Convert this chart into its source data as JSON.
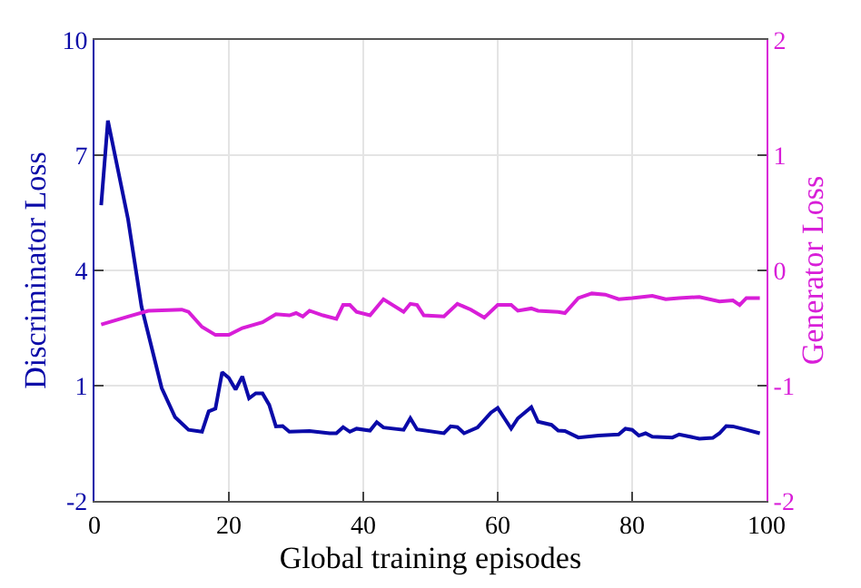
{
  "chart_data": {
    "type": "line",
    "xlabel": "Global training episodes",
    "ylabel": "Discriminator Loss",
    "y2label": "Generator Loss",
    "xlim": [
      0,
      100
    ],
    "xticks": [
      0,
      20,
      40,
      60,
      80,
      100
    ],
    "ylim": [
      -2,
      10
    ],
    "yticks": [
      -2,
      1,
      4,
      7,
      10
    ],
    "y2lim": [
      -2,
      2
    ],
    "y2ticks": [
      -2,
      -1,
      0,
      1,
      2
    ],
    "grid": true,
    "marker": "none",
    "line_style": "solid",
    "series": [
      {
        "color": "#0a0aa8",
        "x": [
          1,
          2,
          5,
          7,
          10,
          12,
          14,
          16,
          17,
          18,
          19,
          20,
          21,
          22,
          23,
          24,
          25,
          26,
          27,
          28,
          29,
          32,
          35,
          36,
          37,
          38,
          39,
          41,
          42,
          43,
          46,
          47,
          48,
          52,
          53,
          54,
          55,
          57,
          59,
          60,
          61,
          62,
          63,
          65,
          66,
          68,
          69,
          70,
          72,
          75,
          78,
          79,
          80,
          81,
          82,
          83,
          86,
          87,
          90,
          92,
          93,
          94,
          95,
          97,
          99
        ],
        "values": [
          5.7,
          7.9,
          5.33,
          3.06,
          0.94,
          0.18,
          -0.15,
          -0.2,
          0.33,
          0.4,
          1.35,
          1.2,
          0.9,
          1.24,
          0.67,
          0.8,
          0.8,
          0.5,
          -0.06,
          -0.05,
          -0.2,
          -0.18,
          -0.24,
          -0.24,
          -0.08,
          -0.2,
          -0.12,
          -0.17,
          0.05,
          -0.09,
          -0.15,
          0.15,
          -0.14,
          -0.24,
          -0.06,
          -0.08,
          -0.24,
          -0.09,
          0.3,
          0.42,
          0.15,
          -0.12,
          0.15,
          0.44,
          0.06,
          -0.02,
          -0.17,
          -0.18,
          -0.35,
          -0.3,
          -0.27,
          -0.12,
          -0.15,
          -0.3,
          -0.24,
          -0.33,
          -0.35,
          -0.27,
          -0.38,
          -0.36,
          -0.24,
          -0.05,
          -0.06,
          -0.15,
          -0.24
        ]
      },
      {
        "color": "#d81ed8",
        "axis": "y2",
        "x": [
          1,
          5,
          8,
          13,
          14,
          16,
          18,
          20,
          22,
          25,
          27,
          29,
          30,
          31,
          32,
          34,
          36,
          37,
          38,
          39,
          41,
          43,
          46,
          47,
          48,
          49,
          52,
          54,
          56,
          58,
          60,
          62,
          63,
          65,
          66,
          69,
          70,
          72,
          74,
          76,
          78,
          80,
          83,
          85,
          87,
          90,
          93,
          95,
          96,
          97,
          99
        ],
        "values": [
          -0.47,
          -0.4,
          -0.35,
          -0.34,
          -0.36,
          -0.49,
          -0.56,
          -0.56,
          -0.5,
          -0.45,
          -0.38,
          -0.39,
          -0.37,
          -0.4,
          -0.35,
          -0.39,
          -0.42,
          -0.3,
          -0.3,
          -0.36,
          -0.39,
          -0.25,
          -0.36,
          -0.29,
          -0.3,
          -0.39,
          -0.4,
          -0.29,
          -0.34,
          -0.41,
          -0.3,
          -0.3,
          -0.35,
          -0.33,
          -0.35,
          -0.36,
          -0.37,
          -0.24,
          -0.2,
          -0.21,
          -0.25,
          -0.24,
          -0.22,
          -0.25,
          -0.24,
          -0.23,
          -0.27,
          -0.26,
          -0.3,
          -0.24,
          -0.24
        ]
      }
    ]
  }
}
